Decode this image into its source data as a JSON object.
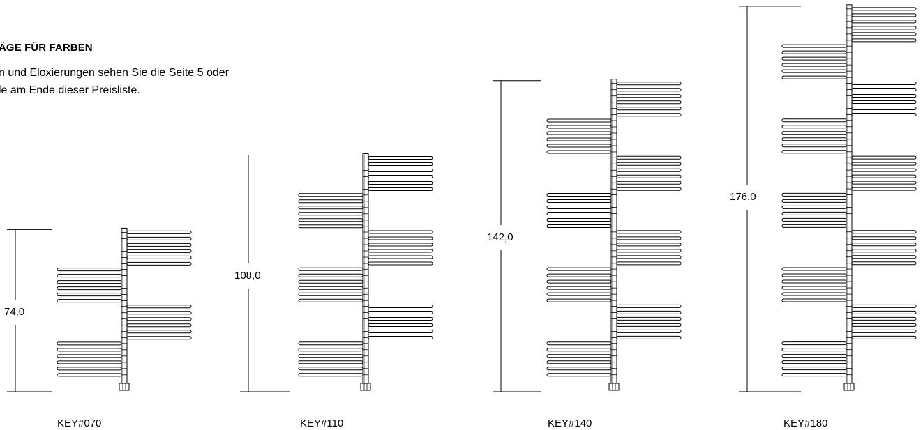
{
  "intro": {
    "heading": "ÄGE FÜR FARBEN",
    "line1": "n und Eloxierungen sehen Sie die Seite 5 oder",
    "line2": "le am Ende dieser Preisliste."
  },
  "models": [
    {
      "name": "KEY#070",
      "height_label": "74,0",
      "height_cm": 74.0,
      "sections": 4
    },
    {
      "name": "KEY#110",
      "height_label": "108,0",
      "height_cm": 108.0,
      "sections": 6
    },
    {
      "name": "KEY#140",
      "height_label": "142,0",
      "height_cm": 142.0,
      "sections": 8
    },
    {
      "name": "KEY#180",
      "height_label": "176,0",
      "height_cm": 176.0,
      "sections": 10
    }
  ]
}
